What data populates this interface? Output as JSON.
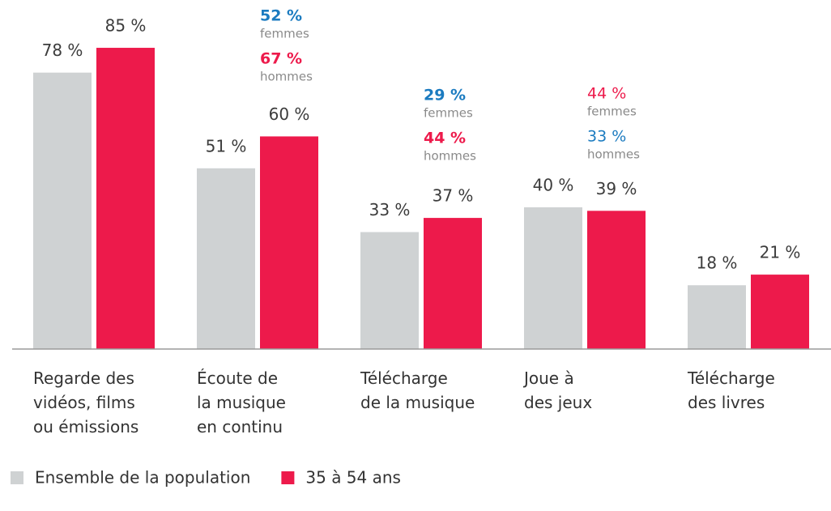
{
  "chart_data": {
    "type": "bar",
    "categories": [
      "Regarde des\nvidéos, films\nou émissions",
      "Écoute de\nla musique\nen continu",
      "Télécharge\nde la musique",
      "Joue à\ndes jeux",
      "Télécharge\ndes livres"
    ],
    "series": [
      {
        "name": "Ensemble de la population",
        "color": "#cfd2d3",
        "values": [
          78,
          51,
          33,
          40,
          18
        ],
        "value_labels": [
          "78 %",
          "51 %",
          "33 %",
          "40 %",
          "18 %"
        ]
      },
      {
        "name": "35 à 54 ans",
        "color": "#ed1a4b",
        "values": [
          85,
          60,
          37,
          39,
          21
        ],
        "value_labels": [
          "85 %",
          "60 %",
          "37 %",
          "39 %",
          "21 %"
        ]
      }
    ],
    "ylim": [
      0,
      100
    ],
    "annotations": [
      null,
      [
        {
          "label": "52 %",
          "text": "femmes",
          "color": "#1b7bc0",
          "bold": true
        },
        {
          "label": "67 %",
          "text": "hommes",
          "color": "#ed1a4b",
          "bold": true
        }
      ],
      [
        {
          "label": "29 %",
          "text": "femmes",
          "color": "#1b7bc0",
          "bold": true
        },
        {
          "label": "44 %",
          "text": "hommes",
          "color": "#ed1a4b",
          "bold": true
        }
      ],
      [
        {
          "label": "44 %",
          "text": "femmes",
          "color": "#ed1a4b",
          "bold": false
        },
        {
          "label": "33 %",
          "text": "hommes",
          "color": "#1b7bc0",
          "bold": false
        }
      ],
      null
    ]
  }
}
